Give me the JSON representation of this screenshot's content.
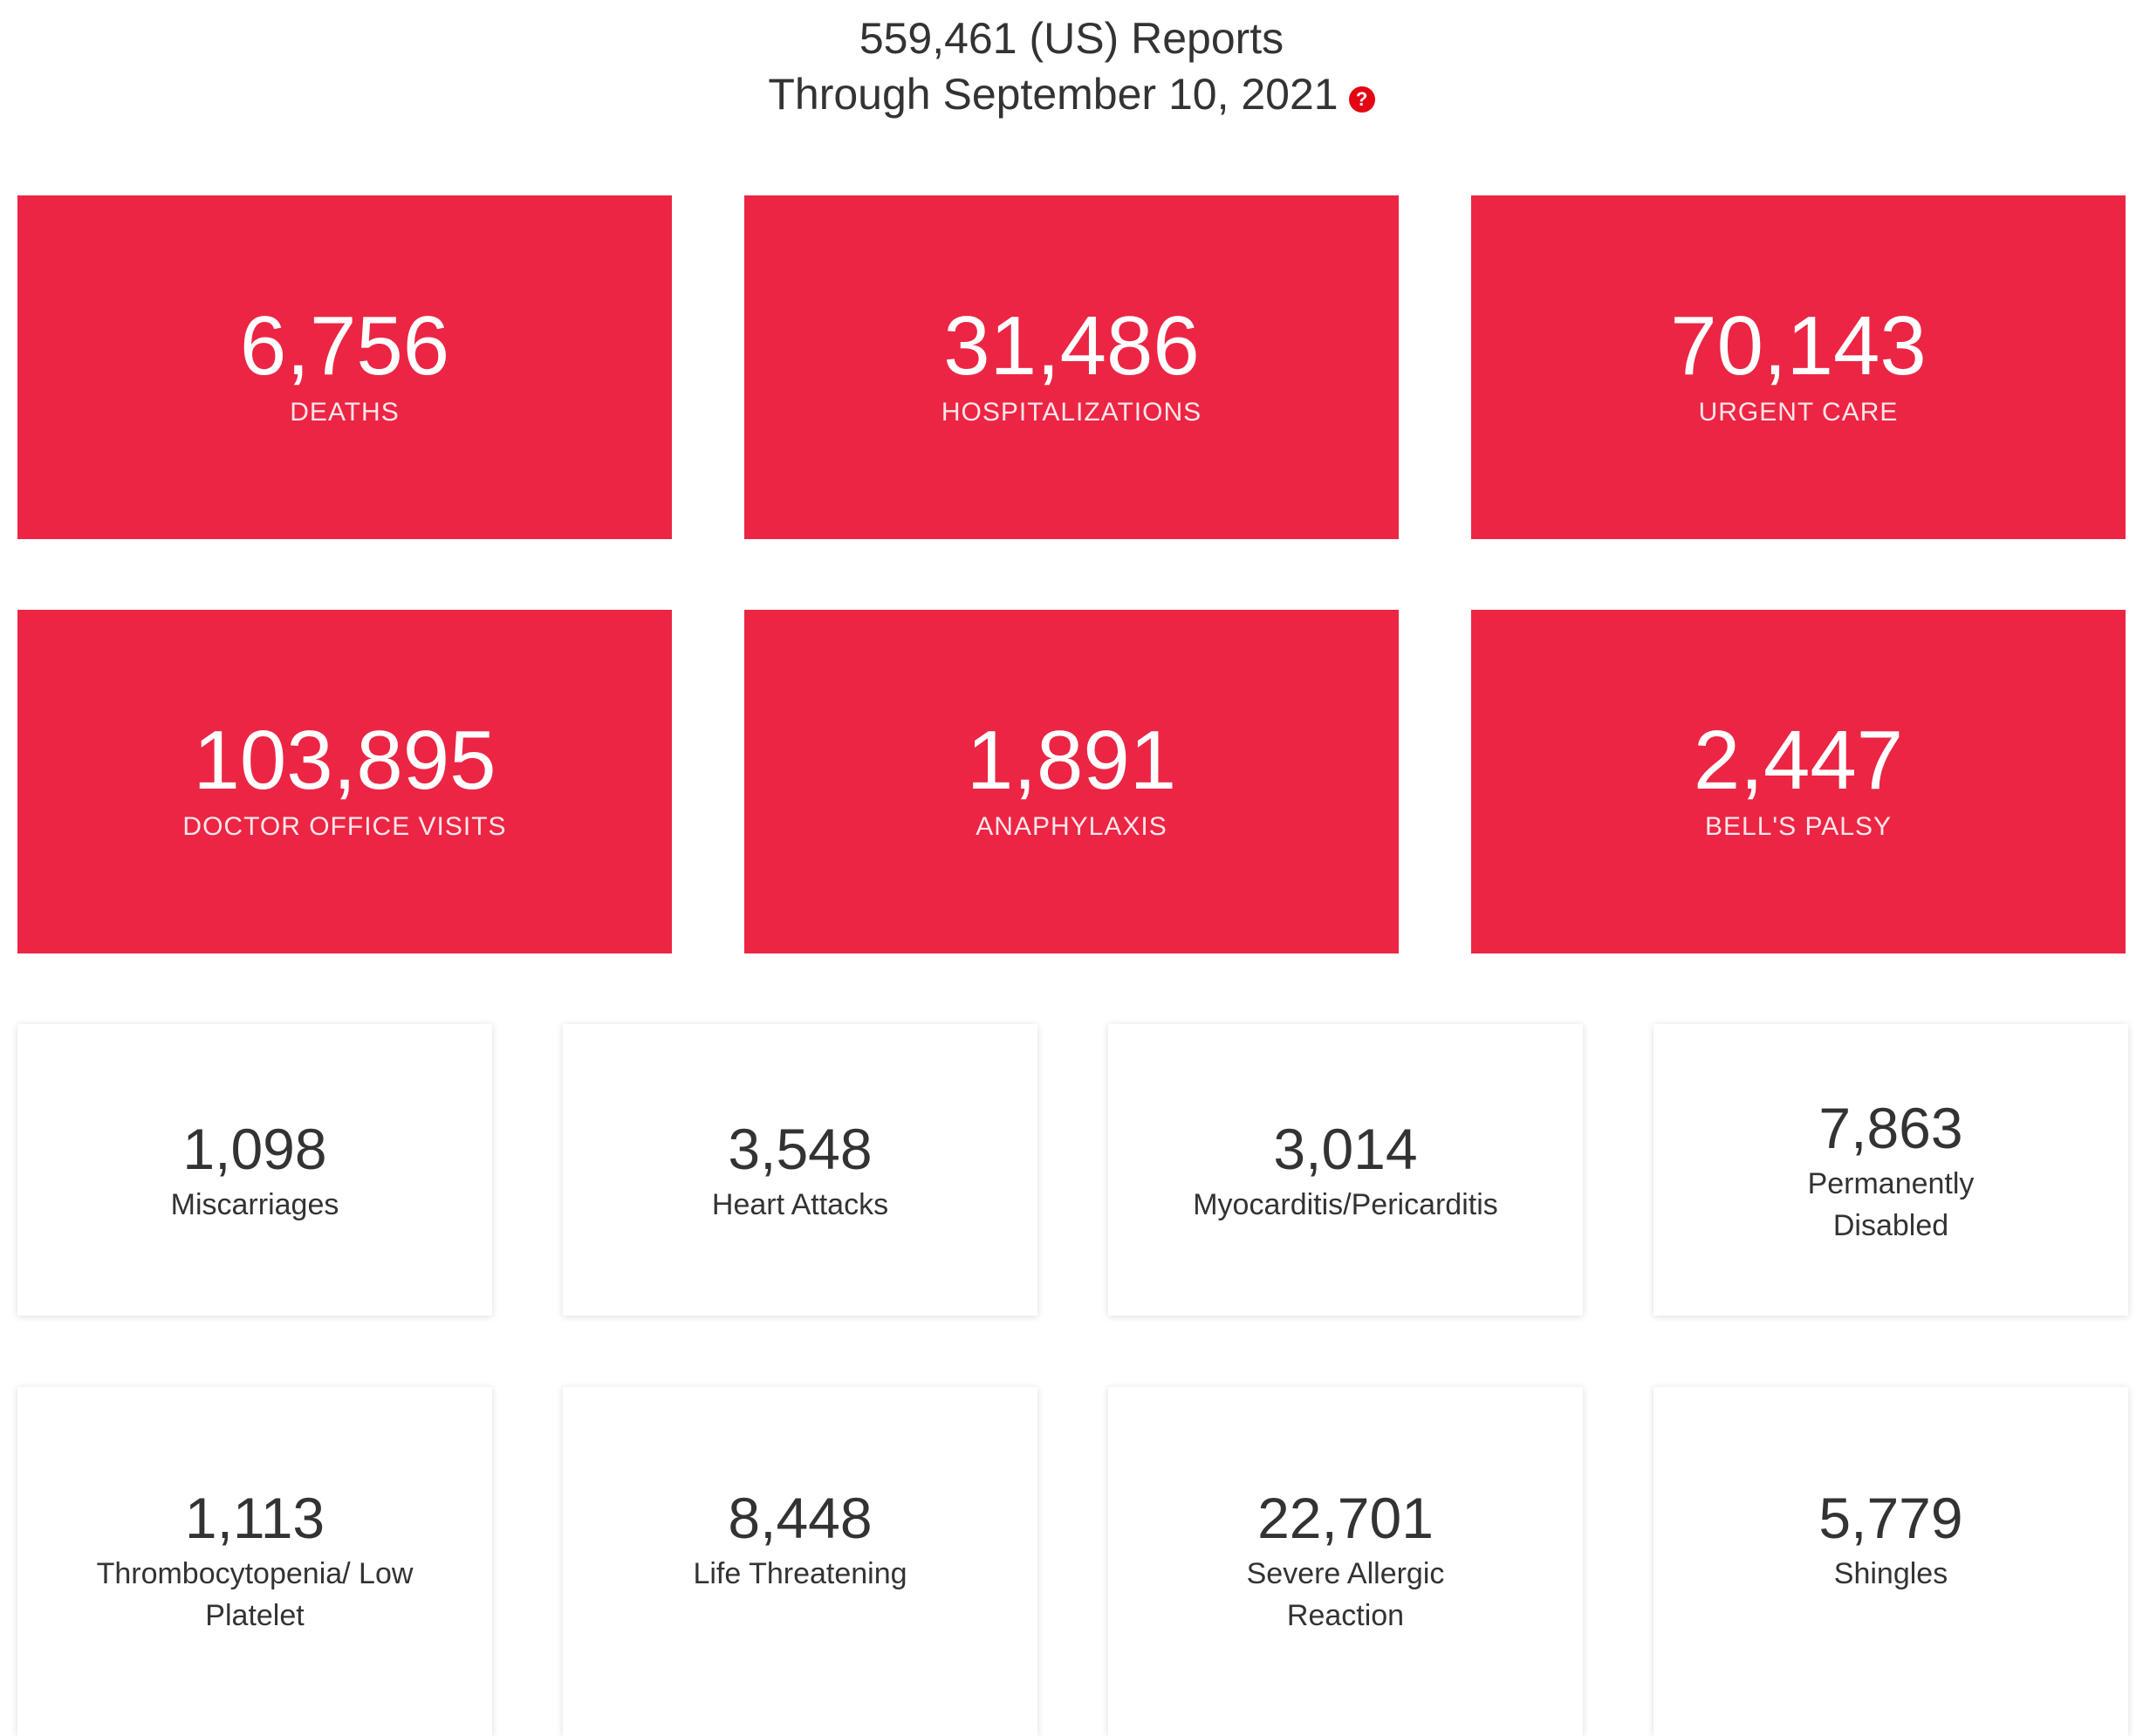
{
  "header": {
    "reports_line": "559,461 (US) Reports",
    "through_line": "Through September 10, 2021",
    "help_symbol": "?"
  },
  "primary_stats": [
    {
      "value": "6,756",
      "label": "DEATHS"
    },
    {
      "value": "31,486",
      "label": "HOSPITALIZATIONS"
    },
    {
      "value": "70,143",
      "label": "URGENT CARE"
    },
    {
      "value": "103,895",
      "label": "DOCTOR OFFICE VISITS"
    },
    {
      "value": "1,891",
      "label": "ANAPHYLAXIS"
    },
    {
      "value": "2,447",
      "label": "BELL'S PALSY"
    }
  ],
  "secondary_stats": [
    {
      "value": "1,098",
      "label": "Miscarriages"
    },
    {
      "value": "3,548",
      "label": "Heart Attacks"
    },
    {
      "value": "3,014",
      "label": "Myocarditis/Pericarditis"
    },
    {
      "value": "7,863",
      "label": "Permanently Disabled"
    },
    {
      "value": "1,113",
      "label": "Thrombocytopenia/ Low Platelet"
    },
    {
      "value": "8,448",
      "label": "Life Threatening"
    },
    {
      "value": "22,701",
      "label": "Severe Allergic Reaction"
    },
    {
      "value": "5,779",
      "label": "Shingles"
    }
  ],
  "colors": {
    "accent_red": "#ec2544",
    "help_icon_red": "#e30613",
    "text_dark": "#333333"
  },
  "icons": {
    "help": "question-circle-icon"
  }
}
